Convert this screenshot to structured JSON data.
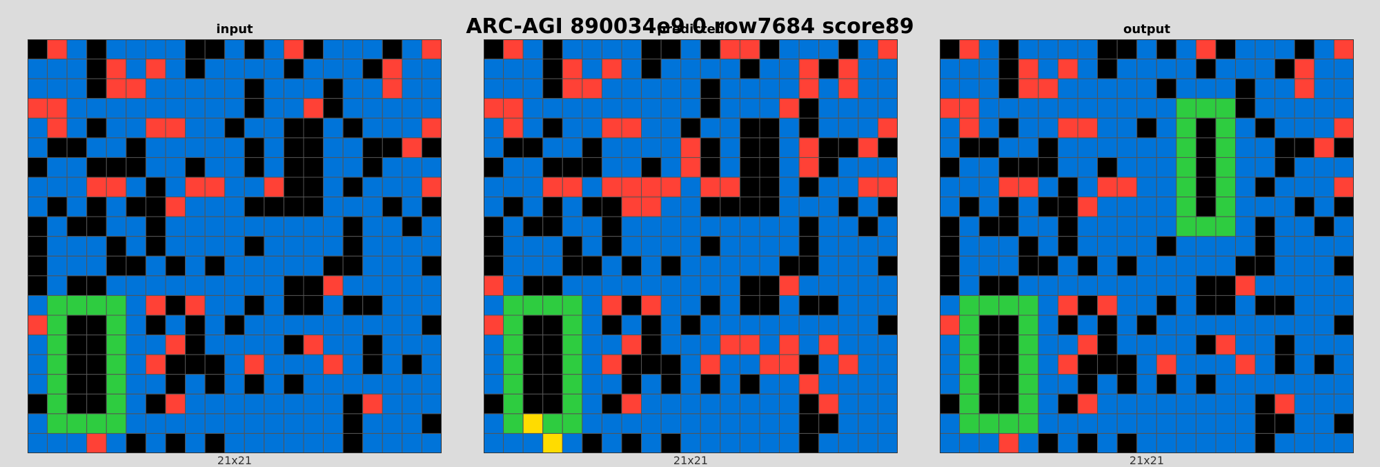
{
  "title": "ARC-AGI 890034e9 0 row7684 score89",
  "palette": {
    "0": "#000000",
    "1": "#0074D9",
    "2": "#FF4136",
    "3": "#2ECC40",
    "4": "#FFDC00"
  },
  "grid_line_color": "#555555",
  "panels": [
    {
      "label": "input",
      "size_label": "21x21",
      "grid": [
        [
          0,
          2,
          1,
          0,
          1,
          1,
          1,
          1,
          0,
          0,
          1,
          0,
          1,
          2,
          0,
          1,
          1,
          1,
          0,
          1,
          2
        ],
        [
          1,
          1,
          1,
          0,
          2,
          1,
          2,
          1,
          0,
          1,
          1,
          1,
          1,
          0,
          1,
          1,
          1,
          0,
          2,
          1,
          1
        ],
        [
          1,
          1,
          1,
          0,
          2,
          2,
          1,
          1,
          1,
          1,
          1,
          0,
          1,
          1,
          1,
          0,
          1,
          1,
          2,
          1,
          1
        ],
        [
          2,
          2,
          1,
          1,
          1,
          1,
          1,
          1,
          1,
          1,
          1,
          0,
          1,
          1,
          2,
          0,
          1,
          1,
          1,
          1,
          1
        ],
        [
          1,
          2,
          1,
          0,
          1,
          1,
          2,
          2,
          1,
          1,
          0,
          1,
          1,
          0,
          0,
          1,
          0,
          1,
          1,
          1,
          2
        ],
        [
          1,
          0,
          0,
          1,
          1,
          0,
          1,
          1,
          1,
          1,
          1,
          0,
          1,
          0,
          0,
          1,
          1,
          0,
          0,
          2,
          0
        ],
        [
          0,
          1,
          1,
          0,
          0,
          0,
          1,
          1,
          0,
          1,
          1,
          0,
          1,
          0,
          0,
          1,
          1,
          0,
          1,
          1,
          1
        ],
        [
          1,
          1,
          1,
          2,
          2,
          1,
          0,
          1,
          2,
          2,
          1,
          1,
          2,
          0,
          0,
          1,
          0,
          1,
          1,
          1,
          2
        ],
        [
          1,
          0,
          1,
          0,
          1,
          0,
          0,
          2,
          1,
          1,
          1,
          0,
          0,
          0,
          0,
          1,
          1,
          1,
          0,
          1,
          0
        ],
        [
          0,
          1,
          0,
          0,
          1,
          1,
          0,
          1,
          1,
          1,
          1,
          1,
          1,
          1,
          1,
          1,
          0,
          1,
          1,
          0,
          1
        ],
        [
          0,
          1,
          1,
          1,
          0,
          1,
          0,
          1,
          1,
          1,
          1,
          0,
          1,
          1,
          1,
          1,
          0,
          1,
          1,
          1,
          1
        ],
        [
          0,
          1,
          1,
          1,
          0,
          0,
          1,
          0,
          1,
          0,
          1,
          1,
          1,
          1,
          1,
          0,
          0,
          1,
          1,
          1,
          0
        ],
        [
          0,
          1,
          0,
          0,
          1,
          1,
          1,
          1,
          1,
          1,
          1,
          1,
          1,
          0,
          0,
          2,
          1,
          1,
          1,
          1,
          1
        ],
        [
          1,
          3,
          3,
          3,
          3,
          1,
          2,
          0,
          2,
          1,
          1,
          0,
          1,
          0,
          0,
          1,
          0,
          0,
          1,
          1,
          1
        ],
        [
          2,
          3,
          0,
          0,
          3,
          1,
          0,
          1,
          0,
          1,
          0,
          1,
          1,
          1,
          1,
          1,
          1,
          1,
          1,
          1,
          0
        ],
        [
          1,
          3,
          0,
          0,
          3,
          1,
          1,
          2,
          0,
          1,
          1,
          1,
          1,
          0,
          2,
          1,
          1,
          0,
          1,
          1,
          1
        ],
        [
          1,
          3,
          0,
          0,
          3,
          1,
          2,
          0,
          0,
          0,
          1,
          2,
          1,
          1,
          1,
          2,
          1,
          0,
          1,
          0,
          1
        ],
        [
          1,
          3,
          0,
          0,
          3,
          1,
          1,
          0,
          1,
          0,
          1,
          0,
          1,
          0,
          1,
          1,
          1,
          1,
          1,
          1,
          1
        ],
        [
          0,
          3,
          0,
          0,
          3,
          1,
          0,
          2,
          1,
          1,
          1,
          1,
          1,
          1,
          1,
          1,
          0,
          2,
          1,
          1,
          1
        ],
        [
          1,
          3,
          3,
          3,
          3,
          1,
          1,
          1,
          1,
          1,
          1,
          1,
          1,
          1,
          1,
          1,
          0,
          1,
          1,
          1,
          0
        ],
        [
          1,
          1,
          1,
          2,
          1,
          0,
          1,
          0,
          1,
          0,
          1,
          1,
          1,
          1,
          1,
          1,
          0,
          1,
          1,
          1,
          1
        ]
      ]
    },
    {
      "label": "predicted",
      "size_label": "21x21",
      "grid": [
        [
          0,
          2,
          1,
          0,
          1,
          1,
          1,
          1,
          0,
          0,
          1,
          0,
          2,
          2,
          0,
          1,
          1,
          1,
          0,
          1,
          2
        ],
        [
          1,
          1,
          1,
          0,
          2,
          1,
          2,
          1,
          0,
          1,
          1,
          1,
          1,
          0,
          1,
          1,
          2,
          0,
          2,
          1,
          1
        ],
        [
          1,
          1,
          1,
          0,
          2,
          2,
          1,
          1,
          1,
          1,
          1,
          0,
          1,
          1,
          1,
          1,
          2,
          1,
          2,
          1,
          1
        ],
        [
          2,
          2,
          1,
          1,
          1,
          1,
          1,
          1,
          1,
          1,
          1,
          0,
          1,
          1,
          1,
          2,
          0,
          1,
          1,
          1,
          1
        ],
        [
          1,
          2,
          1,
          0,
          1,
          1,
          2,
          2,
          1,
          1,
          0,
          1,
          1,
          0,
          0,
          1,
          0,
          1,
          1,
          1,
          2
        ],
        [
          1,
          0,
          0,
          1,
          1,
          0,
          1,
          1,
          1,
          1,
          2,
          0,
          1,
          0,
          0,
          1,
          2,
          0,
          0,
          2,
          0
        ],
        [
          0,
          1,
          1,
          0,
          0,
          0,
          1,
          1,
          0,
          1,
          2,
          0,
          1,
          0,
          0,
          1,
          2,
          0,
          1,
          1,
          1
        ],
        [
          1,
          1,
          1,
          2,
          2,
          1,
          2,
          2,
          2,
          2,
          1,
          2,
          2,
          0,
          0,
          1,
          0,
          1,
          1,
          2,
          2
        ],
        [
          1,
          0,
          1,
          0,
          1,
          0,
          0,
          2,
          2,
          1,
          1,
          0,
          0,
          0,
          0,
          1,
          1,
          1,
          0,
          1,
          0
        ],
        [
          0,
          1,
          0,
          0,
          1,
          1,
          0,
          1,
          1,
          1,
          1,
          1,
          1,
          1,
          1,
          1,
          0,
          1,
          1,
          0,
          1
        ],
        [
          0,
          1,
          1,
          1,
          0,
          1,
          0,
          1,
          1,
          1,
          1,
          0,
          1,
          1,
          1,
          1,
          0,
          1,
          1,
          1,
          1
        ],
        [
          0,
          1,
          1,
          1,
          0,
          0,
          1,
          0,
          1,
          0,
          1,
          1,
          1,
          1,
          1,
          0,
          0,
          1,
          1,
          1,
          0
        ],
        [
          2,
          1,
          0,
          0,
          1,
          1,
          1,
          1,
          1,
          1,
          1,
          1,
          1,
          0,
          0,
          2,
          1,
          1,
          1,
          1,
          1
        ],
        [
          1,
          3,
          3,
          3,
          3,
          1,
          2,
          0,
          2,
          1,
          1,
          0,
          1,
          0,
          0,
          1,
          0,
          0,
          1,
          1,
          1
        ],
        [
          2,
          3,
          0,
          0,
          3,
          1,
          0,
          1,
          0,
          1,
          0,
          1,
          1,
          1,
          1,
          1,
          1,
          1,
          1,
          1,
          0
        ],
        [
          1,
          3,
          0,
          0,
          3,
          1,
          1,
          2,
          0,
          1,
          1,
          1,
          2,
          2,
          1,
          2,
          1,
          2,
          1,
          1,
          1
        ],
        [
          1,
          3,
          0,
          0,
          3,
          1,
          2,
          0,
          0,
          0,
          1,
          2,
          1,
          1,
          2,
          2,
          0,
          1,
          2,
          1,
          1
        ],
        [
          1,
          3,
          0,
          0,
          3,
          1,
          1,
          0,
          1,
          0,
          1,
          0,
          1,
          0,
          1,
          1,
          2,
          1,
          1,
          1,
          1
        ],
        [
          0,
          3,
          0,
          0,
          3,
          1,
          0,
          2,
          1,
          1,
          1,
          1,
          1,
          1,
          1,
          1,
          0,
          2,
          1,
          1,
          1
        ],
        [
          1,
          3,
          4,
          3,
          3,
          1,
          1,
          1,
          1,
          1,
          1,
          1,
          1,
          1,
          1,
          1,
          0,
          0,
          1,
          1,
          1
        ],
        [
          1,
          1,
          1,
          4,
          1,
          0,
          1,
          0,
          1,
          0,
          1,
          1,
          1,
          1,
          1,
          1,
          0,
          1,
          1,
          1,
          1
        ]
      ]
    },
    {
      "label": "output",
      "size_label": "21x21",
      "grid": [
        [
          0,
          2,
          1,
          0,
          1,
          1,
          1,
          1,
          0,
          0,
          1,
          0,
          1,
          2,
          0,
          1,
          1,
          1,
          0,
          1,
          2
        ],
        [
          1,
          1,
          1,
          0,
          2,
          1,
          2,
          1,
          0,
          1,
          1,
          1,
          1,
          0,
          1,
          1,
          1,
          0,
          2,
          1,
          1
        ],
        [
          1,
          1,
          1,
          0,
          2,
          2,
          1,
          1,
          1,
          1,
          1,
          0,
          1,
          1,
          1,
          0,
          1,
          1,
          2,
          1,
          1
        ],
        [
          2,
          2,
          1,
          1,
          1,
          1,
          1,
          1,
          1,
          1,
          1,
          1,
          3,
          3,
          3,
          0,
          1,
          1,
          1,
          1,
          1
        ],
        [
          1,
          2,
          1,
          0,
          1,
          1,
          2,
          2,
          1,
          1,
          0,
          1,
          3,
          0,
          3,
          1,
          0,
          1,
          1,
          1,
          2
        ],
        [
          1,
          0,
          0,
          1,
          1,
          0,
          1,
          1,
          1,
          1,
          1,
          1,
          3,
          0,
          3,
          1,
          1,
          0,
          0,
          2,
          0
        ],
        [
          0,
          1,
          1,
          0,
          0,
          0,
          1,
          1,
          0,
          1,
          1,
          1,
          3,
          0,
          3,
          1,
          1,
          0,
          1,
          1,
          1
        ],
        [
          1,
          1,
          1,
          2,
          2,
          1,
          0,
          1,
          2,
          2,
          1,
          1,
          3,
          0,
          3,
          1,
          0,
          1,
          1,
          1,
          2
        ],
        [
          1,
          0,
          1,
          0,
          1,
          0,
          0,
          2,
          1,
          1,
          1,
          1,
          3,
          0,
          3,
          1,
          1,
          1,
          0,
          1,
          0
        ],
        [
          0,
          1,
          0,
          0,
          1,
          1,
          0,
          1,
          1,
          1,
          1,
          1,
          3,
          3,
          3,
          1,
          0,
          1,
          1,
          0,
          1
        ],
        [
          0,
          1,
          1,
          1,
          0,
          1,
          0,
          1,
          1,
          1,
          1,
          0,
          1,
          1,
          1,
          1,
          0,
          1,
          1,
          1,
          1
        ],
        [
          0,
          1,
          1,
          1,
          0,
          0,
          1,
          0,
          1,
          0,
          1,
          1,
          1,
          1,
          1,
          0,
          0,
          1,
          1,
          1,
          0
        ],
        [
          0,
          1,
          0,
          0,
          1,
          1,
          1,
          1,
          1,
          1,
          1,
          1,
          1,
          0,
          0,
          2,
          1,
          1,
          1,
          1,
          1
        ],
        [
          1,
          3,
          3,
          3,
          3,
          1,
          2,
          0,
          2,
          1,
          1,
          0,
          1,
          0,
          0,
          1,
          0,
          0,
          1,
          1,
          1
        ],
        [
          2,
          3,
          0,
          0,
          3,
          1,
          0,
          1,
          0,
          1,
          0,
          1,
          1,
          1,
          1,
          1,
          1,
          1,
          1,
          1,
          0
        ],
        [
          1,
          3,
          0,
          0,
          3,
          1,
          1,
          2,
          0,
          1,
          1,
          1,
          1,
          0,
          2,
          1,
          1,
          0,
          1,
          1,
          1
        ],
        [
          1,
          3,
          0,
          0,
          3,
          1,
          2,
          0,
          0,
          0,
          1,
          2,
          1,
          1,
          1,
          2,
          1,
          0,
          1,
          0,
          1
        ],
        [
          1,
          3,
          0,
          0,
          3,
          1,
          1,
          0,
          1,
          0,
          1,
          0,
          1,
          0,
          1,
          1,
          1,
          1,
          1,
          1,
          1
        ],
        [
          0,
          3,
          0,
          0,
          3,
          1,
          0,
          2,
          1,
          1,
          1,
          1,
          1,
          1,
          1,
          1,
          0,
          2,
          1,
          1,
          1
        ],
        [
          1,
          3,
          3,
          3,
          3,
          1,
          1,
          1,
          1,
          1,
          1,
          1,
          1,
          1,
          1,
          1,
          0,
          0,
          1,
          1,
          0
        ],
        [
          1,
          1,
          1,
          2,
          1,
          0,
          1,
          0,
          1,
          0,
          1,
          1,
          1,
          1,
          1,
          1,
          0,
          1,
          1,
          1,
          1
        ]
      ]
    }
  ]
}
